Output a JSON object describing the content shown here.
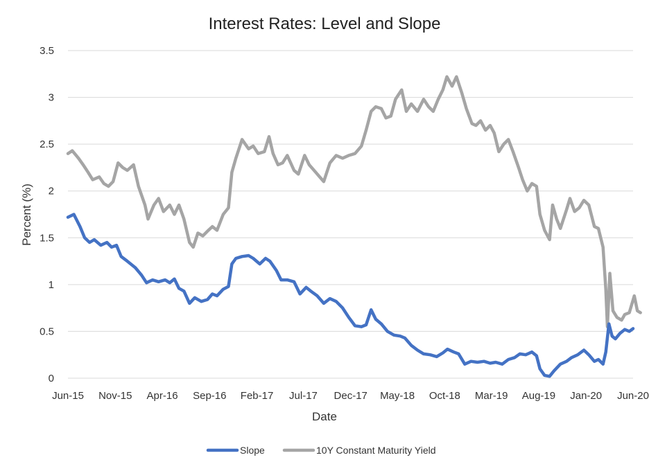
{
  "chart_data": {
    "type": "line",
    "title": "Interest Rates: Level and Slope",
    "xlabel": "Date",
    "ylabel": "Percent (%)",
    "x_ticks": [
      "Jun-15",
      "Nov-15",
      "Apr-16",
      "Sep-16",
      "Feb-17",
      "Jul-17",
      "Dec-17",
      "May-18",
      "Oct-18",
      "Mar-19",
      "Aug-19",
      "Jan-20",
      "Jun-20"
    ],
    "y_ticks": [
      "0",
      "0.5",
      "1",
      "1.5",
      "2",
      "2.5",
      "3",
      "3.5"
    ],
    "ylim": [
      0,
      3.5
    ],
    "xlim": [
      "2015-06",
      "2020-06"
    ],
    "grid": "horizontal",
    "legend_position": "bottom",
    "series": [
      {
        "name": "Slope",
        "color": "#4472c4",
        "points": [
          [
            "2015-06-01",
            1.72
          ],
          [
            "2015-06-20",
            1.75
          ],
          [
            "2015-07-10",
            1.62
          ],
          [
            "2015-07-25",
            1.5
          ],
          [
            "2015-08-10",
            1.45
          ],
          [
            "2015-08-25",
            1.48
          ],
          [
            "2015-09-15",
            1.42
          ],
          [
            "2015-10-05",
            1.45
          ],
          [
            "2015-10-20",
            1.4
          ],
          [
            "2015-11-05",
            1.42
          ],
          [
            "2015-11-20",
            1.3
          ],
          [
            "2015-12-10",
            1.25
          ],
          [
            "2016-01-05",
            1.18
          ],
          [
            "2016-01-25",
            1.1
          ],
          [
            "2016-02-10",
            1.02
          ],
          [
            "2016-03-01",
            1.05
          ],
          [
            "2016-03-20",
            1.03
          ],
          [
            "2016-04-10",
            1.05
          ],
          [
            "2016-04-25",
            1.02
          ],
          [
            "2016-05-10",
            1.06
          ],
          [
            "2016-05-25",
            0.96
          ],
          [
            "2016-06-10",
            0.93
          ],
          [
            "2016-06-28",
            0.8
          ],
          [
            "2016-07-15",
            0.86
          ],
          [
            "2016-08-05",
            0.82
          ],
          [
            "2016-08-25",
            0.84
          ],
          [
            "2016-09-10",
            0.9
          ],
          [
            "2016-09-25",
            0.88
          ],
          [
            "2016-10-15",
            0.95
          ],
          [
            "2016-11-01",
            0.98
          ],
          [
            "2016-11-12",
            1.22
          ],
          [
            "2016-11-25",
            1.28
          ],
          [
            "2016-12-15",
            1.3
          ],
          [
            "2017-01-05",
            1.31
          ],
          [
            "2017-01-20",
            1.28
          ],
          [
            "2017-02-10",
            1.22
          ],
          [
            "2017-03-01",
            1.28
          ],
          [
            "2017-03-15",
            1.25
          ],
          [
            "2017-04-05",
            1.15
          ],
          [
            "2017-04-20",
            1.05
          ],
          [
            "2017-05-10",
            1.05
          ],
          [
            "2017-06-01",
            1.03
          ],
          [
            "2017-06-20",
            0.9
          ],
          [
            "2017-07-10",
            0.97
          ],
          [
            "2017-07-25",
            0.93
          ],
          [
            "2017-08-15",
            0.88
          ],
          [
            "2017-09-05",
            0.8
          ],
          [
            "2017-09-25",
            0.85
          ],
          [
            "2017-10-15",
            0.82
          ],
          [
            "2017-11-05",
            0.75
          ],
          [
            "2017-11-25",
            0.65
          ],
          [
            "2017-12-15",
            0.56
          ],
          [
            "2018-01-05",
            0.55
          ],
          [
            "2018-01-20",
            0.57
          ],
          [
            "2018-02-05",
            0.73
          ],
          [
            "2018-02-20",
            0.63
          ],
          [
            "2018-03-10",
            0.58
          ],
          [
            "2018-03-30",
            0.5
          ],
          [
            "2018-04-20",
            0.46
          ],
          [
            "2018-05-10",
            0.45
          ],
          [
            "2018-05-25",
            0.43
          ],
          [
            "2018-06-15",
            0.35
          ],
          [
            "2018-07-05",
            0.3
          ],
          [
            "2018-07-25",
            0.26
          ],
          [
            "2018-08-15",
            0.25
          ],
          [
            "2018-09-05",
            0.23
          ],
          [
            "2018-09-25",
            0.27
          ],
          [
            "2018-10-10",
            0.31
          ],
          [
            "2018-10-30",
            0.28
          ],
          [
            "2018-11-15",
            0.26
          ],
          [
            "2018-12-05",
            0.15
          ],
          [
            "2018-12-25",
            0.18
          ],
          [
            "2019-01-15",
            0.17
          ],
          [
            "2019-02-05",
            0.18
          ],
          [
            "2019-02-25",
            0.16
          ],
          [
            "2019-03-15",
            0.17
          ],
          [
            "2019-04-05",
            0.15
          ],
          [
            "2019-04-25",
            0.2
          ],
          [
            "2019-05-15",
            0.22
          ],
          [
            "2019-06-01",
            0.26
          ],
          [
            "2019-06-20",
            0.25
          ],
          [
            "2019-07-10",
            0.28
          ],
          [
            "2019-07-25",
            0.24
          ],
          [
            "2019-08-05",
            0.1
          ],
          [
            "2019-08-20",
            0.03
          ],
          [
            "2019-09-05",
            0.02
          ],
          [
            "2019-09-20",
            0.08
          ],
          [
            "2019-10-10",
            0.15
          ],
          [
            "2019-10-30",
            0.18
          ],
          [
            "2019-11-15",
            0.22
          ],
          [
            "2019-12-05",
            0.25
          ],
          [
            "2019-12-25",
            0.3
          ],
          [
            "2020-01-10",
            0.25
          ],
          [
            "2020-01-28",
            0.18
          ],
          [
            "2020-02-10",
            0.2
          ],
          [
            "2020-02-25",
            0.15
          ],
          [
            "2020-03-05",
            0.28
          ],
          [
            "2020-03-15",
            0.58
          ],
          [
            "2020-03-25",
            0.45
          ],
          [
            "2020-04-05",
            0.42
          ],
          [
            "2020-04-20",
            0.48
          ],
          [
            "2020-05-05",
            0.52
          ],
          [
            "2020-05-20",
            0.5
          ],
          [
            "2020-06-01",
            0.53
          ]
        ]
      },
      {
        "name": "10Y Constant Maturity Yield",
        "color": "#a5a5a5",
        "points": [
          [
            "2015-06-01",
            2.4
          ],
          [
            "2015-06-15",
            2.43
          ],
          [
            "2015-07-05",
            2.35
          ],
          [
            "2015-07-20",
            2.28
          ],
          [
            "2015-08-05",
            2.2
          ],
          [
            "2015-08-20",
            2.12
          ],
          [
            "2015-09-10",
            2.15
          ],
          [
            "2015-09-25",
            2.08
          ],
          [
            "2015-10-10",
            2.05
          ],
          [
            "2015-10-25",
            2.1
          ],
          [
            "2015-11-10",
            2.3
          ],
          [
            "2015-11-25",
            2.25
          ],
          [
            "2015-12-10",
            2.22
          ],
          [
            "2015-12-30",
            2.28
          ],
          [
            "2016-01-15",
            2.05
          ],
          [
            "2016-02-05",
            1.85
          ],
          [
            "2016-02-15",
            1.7
          ],
          [
            "2016-03-05",
            1.85
          ],
          [
            "2016-03-20",
            1.92
          ],
          [
            "2016-04-05",
            1.78
          ],
          [
            "2016-04-25",
            1.85
          ],
          [
            "2016-05-10",
            1.75
          ],
          [
            "2016-05-25",
            1.85
          ],
          [
            "2016-06-10",
            1.7
          ],
          [
            "2016-06-28",
            1.45
          ],
          [
            "2016-07-10",
            1.4
          ],
          [
            "2016-07-25",
            1.55
          ],
          [
            "2016-08-10",
            1.52
          ],
          [
            "2016-08-25",
            1.57
          ],
          [
            "2016-09-10",
            1.62
          ],
          [
            "2016-09-25",
            1.58
          ],
          [
            "2016-10-15",
            1.75
          ],
          [
            "2016-11-01",
            1.82
          ],
          [
            "2016-11-12",
            2.2
          ],
          [
            "2016-11-25",
            2.35
          ],
          [
            "2016-12-15",
            2.55
          ],
          [
            "2017-01-05",
            2.45
          ],
          [
            "2017-01-20",
            2.48
          ],
          [
            "2017-02-05",
            2.4
          ],
          [
            "2017-02-25",
            2.42
          ],
          [
            "2017-03-12",
            2.58
          ],
          [
            "2017-03-25",
            2.4
          ],
          [
            "2017-04-10",
            2.28
          ],
          [
            "2017-04-25",
            2.3
          ],
          [
            "2017-05-10",
            2.38
          ],
          [
            "2017-06-01",
            2.22
          ],
          [
            "2017-06-15",
            2.18
          ],
          [
            "2017-07-05",
            2.38
          ],
          [
            "2017-07-20",
            2.28
          ],
          [
            "2017-08-10",
            2.2
          ],
          [
            "2017-09-05",
            2.1
          ],
          [
            "2017-09-25",
            2.3
          ],
          [
            "2017-10-15",
            2.38
          ],
          [
            "2017-11-05",
            2.35
          ],
          [
            "2017-11-25",
            2.38
          ],
          [
            "2017-12-15",
            2.4
          ],
          [
            "2018-01-05",
            2.48
          ],
          [
            "2018-01-20",
            2.65
          ],
          [
            "2018-02-05",
            2.85
          ],
          [
            "2018-02-20",
            2.9
          ],
          [
            "2018-03-10",
            2.88
          ],
          [
            "2018-03-25",
            2.78
          ],
          [
            "2018-04-10",
            2.8
          ],
          [
            "2018-04-25",
            2.98
          ],
          [
            "2018-05-15",
            3.08
          ],
          [
            "2018-05-30",
            2.85
          ],
          [
            "2018-06-15",
            2.93
          ],
          [
            "2018-07-05",
            2.85
          ],
          [
            "2018-07-25",
            2.98
          ],
          [
            "2018-08-10",
            2.9
          ],
          [
            "2018-08-25",
            2.85
          ],
          [
            "2018-09-10",
            2.98
          ],
          [
            "2018-09-25",
            3.08
          ],
          [
            "2018-10-08",
            3.22
          ],
          [
            "2018-10-25",
            3.12
          ],
          [
            "2018-11-08",
            3.22
          ],
          [
            "2018-11-25",
            3.05
          ],
          [
            "2018-12-10",
            2.88
          ],
          [
            "2018-12-28",
            2.72
          ],
          [
            "2019-01-10",
            2.7
          ],
          [
            "2019-01-25",
            2.75
          ],
          [
            "2019-02-10",
            2.65
          ],
          [
            "2019-02-25",
            2.7
          ],
          [
            "2019-03-10",
            2.62
          ],
          [
            "2019-03-25",
            2.42
          ],
          [
            "2019-04-10",
            2.5
          ],
          [
            "2019-04-25",
            2.55
          ],
          [
            "2019-05-10",
            2.42
          ],
          [
            "2019-05-28",
            2.25
          ],
          [
            "2019-06-10",
            2.12
          ],
          [
            "2019-06-25",
            2.0
          ],
          [
            "2019-07-10",
            2.08
          ],
          [
            "2019-07-25",
            2.05
          ],
          [
            "2019-08-05",
            1.75
          ],
          [
            "2019-08-20",
            1.58
          ],
          [
            "2019-09-05",
            1.48
          ],
          [
            "2019-09-15",
            1.85
          ],
          [
            "2019-09-28",
            1.7
          ],
          [
            "2019-10-10",
            1.6
          ],
          [
            "2019-10-30",
            1.8
          ],
          [
            "2019-11-10",
            1.92
          ],
          [
            "2019-11-25",
            1.78
          ],
          [
            "2019-12-10",
            1.82
          ],
          [
            "2019-12-25",
            1.9
          ],
          [
            "2020-01-10",
            1.85
          ],
          [
            "2020-01-28",
            1.62
          ],
          [
            "2020-02-10",
            1.6
          ],
          [
            "2020-02-25",
            1.4
          ],
          [
            "2020-03-05",
            0.95
          ],
          [
            "2020-03-10",
            0.55
          ],
          [
            "2020-03-18",
            1.12
          ],
          [
            "2020-03-28",
            0.72
          ],
          [
            "2020-04-10",
            0.65
          ],
          [
            "2020-04-25",
            0.62
          ],
          [
            "2020-05-05",
            0.68
          ],
          [
            "2020-05-20",
            0.7
          ],
          [
            "2020-06-05",
            0.88
          ],
          [
            "2020-06-15",
            0.72
          ],
          [
            "2020-06-25",
            0.7
          ]
        ]
      }
    ]
  }
}
